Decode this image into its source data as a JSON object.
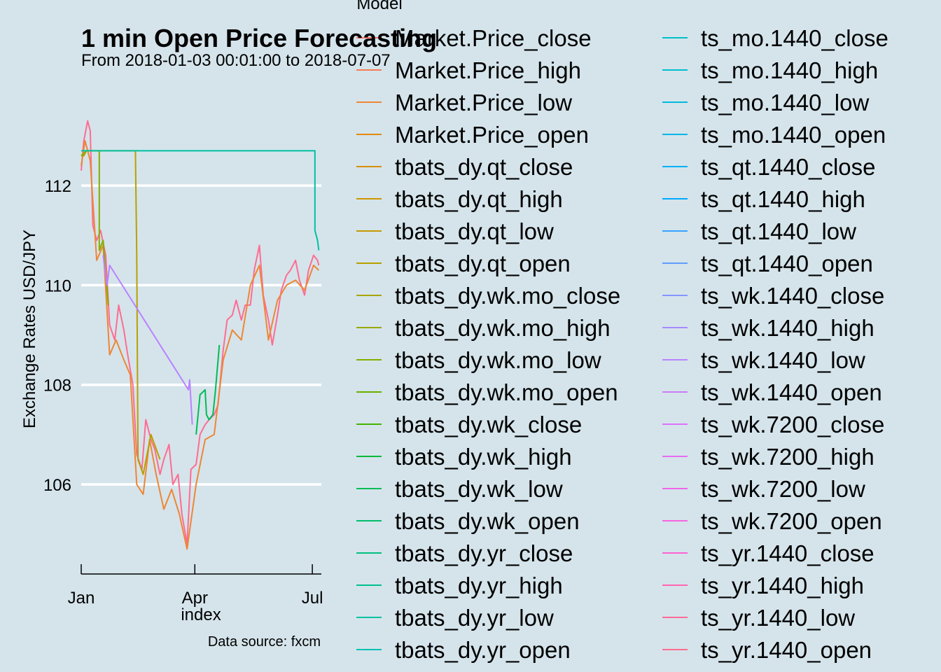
{
  "chart_data": {
    "type": "line",
    "title": "1 min Open Price Forecasting",
    "subtitle": "From 2018-01-03 00:01:00 to 2018-07-07",
    "xlabel": "index",
    "ylabel": "Exchange Rates USD/JPY",
    "caption": "Data source: fxcm",
    "x_ticks": [
      "Jan",
      "Apr",
      "Jul"
    ],
    "y_ticks": [
      106,
      108,
      110,
      112
    ],
    "xlim": [
      "2018-01-03",
      "2018-07-08"
    ],
    "ylim": [
      104.2,
      113.9
    ],
    "grid": "horizontal major only",
    "legend_title": "Model",
    "legend_position": "right",
    "legend": [
      {
        "name": "Market.Price_close",
        "color": "#F8766D"
      },
      {
        "name": "Market.Price_high",
        "color": "#F47C55"
      },
      {
        "name": "Market.Price_low",
        "color": "#EE8636"
      },
      {
        "name": "Market.Price_open",
        "color": "#E38900"
      },
      {
        "name": "tbats_dy.qt_close",
        "color": "#D89000"
      },
      {
        "name": "tbats_dy.qt_high",
        "color": "#CF9400"
      },
      {
        "name": "tbats_dy.qt_low",
        "color": "#C49A00"
      },
      {
        "name": "tbats_dy.qt_open",
        "color": "#B8A000"
      },
      {
        "name": "tbats_dy.wk.mo_close",
        "color": "#A9A400"
      },
      {
        "name": "tbats_dy.wk.mo_high",
        "color": "#99A800"
      },
      {
        "name": "tbats_dy.wk.mo_low",
        "color": "#85AD00"
      },
      {
        "name": "tbats_dy.wk.mo_open",
        "color": "#6BB100"
      },
      {
        "name": "tbats_dy.wk_close",
        "color": "#43B500"
      },
      {
        "name": "tbats_dy.wk_high",
        "color": "#00BA38"
      },
      {
        "name": "tbats_dy.wk_low",
        "color": "#00BC56"
      },
      {
        "name": "tbats_dy.wk_open",
        "color": "#00BE6C"
      },
      {
        "name": "tbats_dy.yr_close",
        "color": "#00C07F"
      },
      {
        "name": "tbats_dy.yr_high",
        "color": "#00C091"
      },
      {
        "name": "tbats_dy.yr_low",
        "color": "#00C0A2"
      },
      {
        "name": "tbats_dy.yr_open",
        "color": "#00C0B2"
      },
      {
        "name": "ts_mo.1440_close",
        "color": "#00BFC4"
      },
      {
        "name": "ts_mo.1440_high",
        "color": "#00BDD0"
      },
      {
        "name": "ts_mo.1440_low",
        "color": "#00BADC"
      },
      {
        "name": "ts_mo.1440_open",
        "color": "#00B6E8"
      },
      {
        "name": "ts_qt.1440_close",
        "color": "#00B0F6"
      },
      {
        "name": "ts_qt.1440_high",
        "color": "#00A9FF"
      },
      {
        "name": "ts_qt.1440_low",
        "color": "#35A2FF"
      },
      {
        "name": "ts_qt.1440_open",
        "color": "#619CFF"
      },
      {
        "name": "ts_wk.1440_close",
        "color": "#8794FF"
      },
      {
        "name": "ts_wk.1440_high",
        "color": "#A58AFF"
      },
      {
        "name": "ts_wk.1440_low",
        "color": "#BA82FF"
      },
      {
        "name": "ts_wk.1440_open",
        "color": "#CC7BF4"
      },
      {
        "name": "ts_wk.7200_close",
        "color": "#DB72FB"
      },
      {
        "name": "ts_wk.7200_high",
        "color": "#E76BF3"
      },
      {
        "name": "ts_wk.7200_low",
        "color": "#F066EA"
      },
      {
        "name": "ts_wk.7200_open",
        "color": "#F863DF"
      },
      {
        "name": "ts_yr.1440_close",
        "color": "#FD61D1"
      },
      {
        "name": "ts_yr.1440_high",
        "color": "#FF64B0"
      },
      {
        "name": "ts_yr.1440_low",
        "color": "#FF6A98"
      },
      {
        "name": "ts_yr.1440_open",
        "color": "#FF6C91"
      }
    ],
    "series": [
      {
        "name": "ts_yr.1440_open",
        "color": "#FF6C91",
        "x": [
          "2018-01-03",
          "2018-01-05",
          "2018-01-08",
          "2018-01-10",
          "2018-01-12",
          "2018-01-15",
          "2018-01-18",
          "2018-01-22",
          "2018-01-25",
          "2018-01-29",
          "2018-02-01",
          "2018-02-05",
          "2018-02-08",
          "2018-02-12",
          "2018-02-15",
          "2018-02-19",
          "2018-02-22",
          "2018-02-26",
          "2018-03-01",
          "2018-03-05",
          "2018-03-08",
          "2018-03-12",
          "2018-03-15",
          "2018-03-19",
          "2018-03-22",
          "2018-03-26",
          "2018-03-29",
          "2018-04-02",
          "2018-04-05",
          "2018-04-09",
          "2018-04-12",
          "2018-04-16",
          "2018-04-19",
          "2018-04-23",
          "2018-04-26",
          "2018-04-30",
          "2018-05-03",
          "2018-05-07",
          "2018-05-10",
          "2018-05-14",
          "2018-05-17",
          "2018-05-21",
          "2018-05-24",
          "2018-05-28",
          "2018-05-31",
          "2018-06-04",
          "2018-06-07",
          "2018-06-11",
          "2018-06-14",
          "2018-06-18",
          "2018-06-21",
          "2018-06-25",
          "2018-06-28",
          "2018-07-02",
          "2018-07-05",
          "2018-07-06"
        ],
        "values": [
          112.3,
          112.9,
          113.3,
          113.1,
          111.2,
          110.9,
          111.1,
          110.6,
          109.2,
          108.9,
          109.6,
          109.1,
          108.6,
          108.0,
          106.6,
          106.3,
          107.3,
          106.9,
          106.7,
          106.2,
          106.5,
          106.8,
          106.0,
          106.2,
          105.4,
          104.8,
          106.3,
          106.4,
          107.0,
          107.2,
          107.3,
          107.4,
          107.6,
          108.7,
          109.3,
          109.4,
          109.7,
          109.3,
          109.6,
          109.6,
          110.3,
          110.8,
          109.8,
          109.3,
          108.8,
          109.4,
          109.9,
          110.2,
          110.3,
          110.5,
          110.1,
          109.8,
          110.3,
          110.6,
          110.5,
          110.4
        ]
      },
      {
        "name": "Market.Price_low",
        "color": "#EE8636",
        "x": [
          "2018-01-03",
          "2018-01-06",
          "2018-01-10",
          "2018-01-15",
          "2018-01-20",
          "2018-01-25",
          "2018-01-30",
          "2018-02-05",
          "2018-02-10",
          "2018-02-15",
          "2018-02-20",
          "2018-02-25",
          "2018-03-02",
          "2018-03-08",
          "2018-03-14",
          "2018-03-20",
          "2018-03-26",
          "2018-04-02",
          "2018-04-09",
          "2018-04-16",
          "2018-04-23",
          "2018-04-30",
          "2018-05-07",
          "2018-05-14",
          "2018-05-21",
          "2018-05-28",
          "2018-06-04",
          "2018-06-11",
          "2018-06-18",
          "2018-06-25",
          "2018-07-02",
          "2018-07-06"
        ],
        "values": [
          112.4,
          112.9,
          112.5,
          110.5,
          110.8,
          108.6,
          108.9,
          108.5,
          108.2,
          106.0,
          105.8,
          106.9,
          106.2,
          105.5,
          105.9,
          105.4,
          104.7,
          106.0,
          106.9,
          107.0,
          108.5,
          109.1,
          108.9,
          110.0,
          110.4,
          108.9,
          109.7,
          110.0,
          110.1,
          109.9,
          110.4,
          110.3
        ]
      },
      {
        "name": "tbats_dy.qt_open",
        "color": "#B8A000",
        "x": [
          "2018-01-03",
          "2018-01-05",
          "2018-01-07",
          "2018-02-14",
          "2018-02-14",
          "2018-02-15",
          "2018-02-16",
          "2018-02-20",
          "2018-02-26",
          "2018-03-05"
        ],
        "values": [
          112.6,
          112.6,
          112.7,
          112.7,
          112.6,
          110.6,
          106.5,
          106.2,
          107.0,
          106.5
        ]
      },
      {
        "name": "tbats_dy.wk.mo_low",
        "color": "#85AD00",
        "x": [
          "2018-01-03",
          "2018-01-07",
          "2018-01-17",
          "2018-01-17",
          "2018-01-20",
          "2018-01-24"
        ],
        "values": [
          112.6,
          112.7,
          112.7,
          110.7,
          110.9,
          109.6
        ]
      },
      {
        "name": "tbats_dy.wk_low",
        "color": "#00BC56",
        "x": [
          "2018-04-02",
          "2018-04-05",
          "2018-04-09",
          "2018-04-10",
          "2018-04-12",
          "2018-04-15",
          "2018-04-17",
          "2018-04-20"
        ],
        "values": [
          107.0,
          107.8,
          107.9,
          107.4,
          107.3,
          107.4,
          107.9,
          108.8
        ]
      },
      {
        "name": "tbats_dy.yr_low",
        "color": "#00C0A2",
        "x": [
          "2018-01-03",
          "2018-01-08",
          "2018-02-01",
          "2018-03-01",
          "2018-04-01",
          "2018-05-01",
          "2018-06-01",
          "2018-07-02",
          "2018-07-03",
          "2018-07-03",
          "2018-07-05",
          "2018-07-06"
        ],
        "values": [
          112.7,
          112.7,
          112.7,
          112.7,
          112.7,
          112.7,
          112.7,
          112.7,
          112.7,
          111.1,
          110.9,
          110.7
        ]
      },
      {
        "name": "ts_wk.1440_low",
        "color": "#BA82FF",
        "x": [
          "2018-01-20",
          "2018-01-23",
          "2018-01-25",
          "2018-03-27",
          "2018-03-28",
          "2018-03-30"
        ],
        "values": [
          110.6,
          110.0,
          110.4,
          107.9,
          108.1,
          107.2
        ]
      }
    ]
  }
}
